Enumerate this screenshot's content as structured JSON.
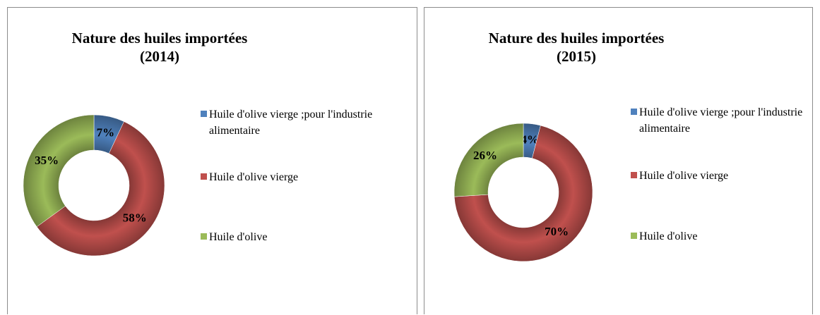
{
  "chart_data": [
    {
      "type": "donut",
      "title": [
        "Nature des huiles importées",
        "(2014)"
      ],
      "categories": [
        "Huile d'olive vierge ;pour l'industrie alimentaire",
        "Huile d'olive vierge",
        "Huile d'olive"
      ],
      "values": [
        7,
        58,
        35
      ],
      "value_labels": [
        "7%",
        "58%",
        "35%"
      ],
      "colors": [
        "#4f81bd",
        "#c0504d",
        "#9bbb59"
      ],
      "legend": "right"
    },
    {
      "type": "donut",
      "title": [
        "Nature des huiles importées",
        "(2015)"
      ],
      "categories": [
        "Huile d'olive vierge ;pour l'industrie alimentaire",
        "Huile d'olive vierge",
        "Huile d'olive"
      ],
      "values": [
        4,
        70,
        26
      ],
      "value_labels": [
        "4%",
        "70%",
        "26%"
      ],
      "colors": [
        "#4f81bd",
        "#c0504d",
        "#9bbb59"
      ],
      "legend": "right"
    }
  ]
}
